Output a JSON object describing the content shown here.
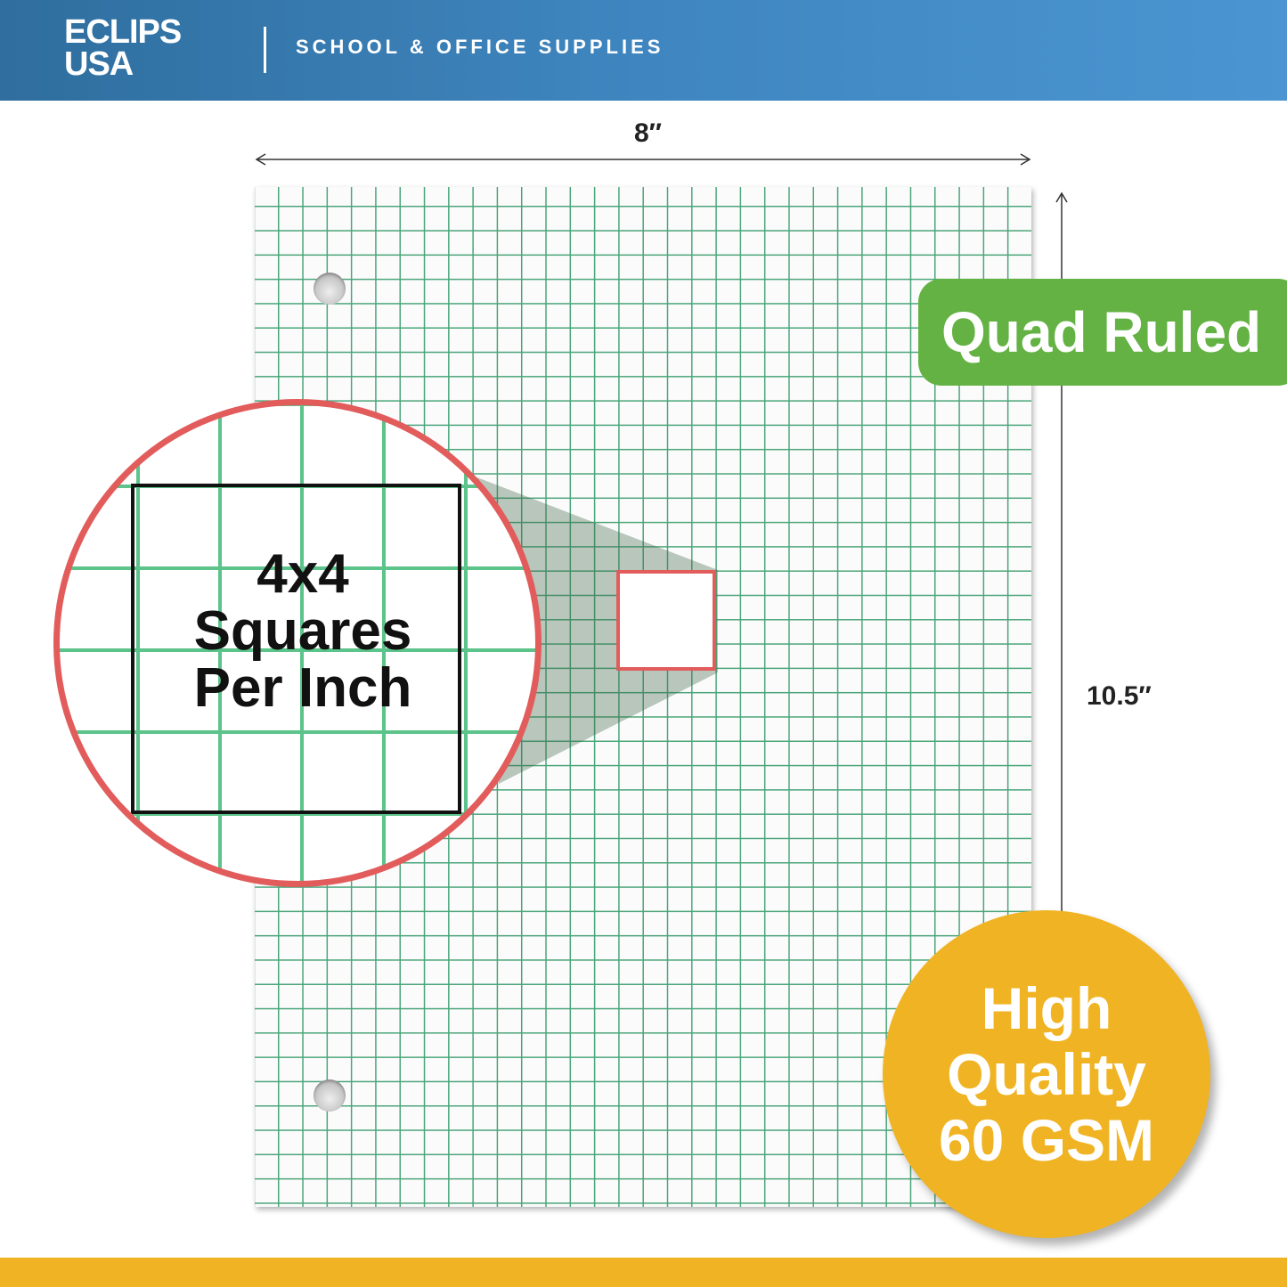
{
  "header": {
    "logo_line1": "ECLIPS",
    "logo_line2": "USA",
    "tagline": "SCHOOL & OFFICE SUPPLIES"
  },
  "dimensions": {
    "width": "8″",
    "height": "10.5″"
  },
  "magnifier": {
    "line1": "4x4",
    "line2": "Squares",
    "line3": "Per Inch"
  },
  "badges": {
    "ruling": "Quad Ruled",
    "quality_line1": "High",
    "quality_line2": "Quality",
    "quality_line3": "60 GSM"
  },
  "colors": {
    "header": "#3f86c0",
    "grid": "#4aa57a",
    "accent_red": "#e25c5c",
    "green_badge": "#64b244",
    "yellow_badge": "#f0b323"
  }
}
